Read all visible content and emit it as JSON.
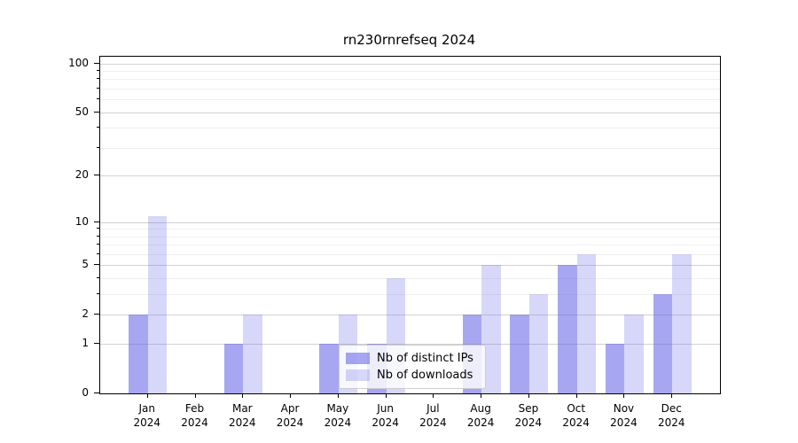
{
  "chart_data": {
    "type": "bar",
    "title": "rn230rnrefseq 2024",
    "categories": [
      "Jan",
      "Feb",
      "Mar",
      "Apr",
      "May",
      "Jun",
      "Jul",
      "Aug",
      "Sep",
      "Oct",
      "Nov",
      "Dec"
    ],
    "category_year": "2024",
    "series": [
      {
        "name": "Nb of distinct IPs",
        "color": "rgba(95,95,230,0.55)",
        "values": [
          2,
          0,
          1,
          0,
          1,
          1,
          0,
          2,
          2,
          5,
          1,
          3
        ]
      },
      {
        "name": "Nb of downloads",
        "color": "rgba(95,95,230,0.25)",
        "values": [
          11,
          0,
          2,
          0,
          2,
          4,
          0,
          5,
          3,
          6,
          2,
          6
        ]
      }
    ],
    "y_axis": {
      "scale": "log10(1+v)",
      "major_ticks": [
        0,
        1,
        2,
        5,
        10,
        20,
        50,
        100
      ],
      "minor_gridlines": [
        3,
        4,
        6,
        7,
        8,
        9,
        30,
        40,
        60,
        70,
        80,
        90
      ],
      "ylim": [
        0,
        110
      ]
    },
    "grid": true,
    "legend_position": "lower center",
    "colors": {
      "major_gridline": "#d2d2d2",
      "minor_gridline": "#efefef",
      "axis": "#000000",
      "legend_border": "#cccccc"
    }
  }
}
